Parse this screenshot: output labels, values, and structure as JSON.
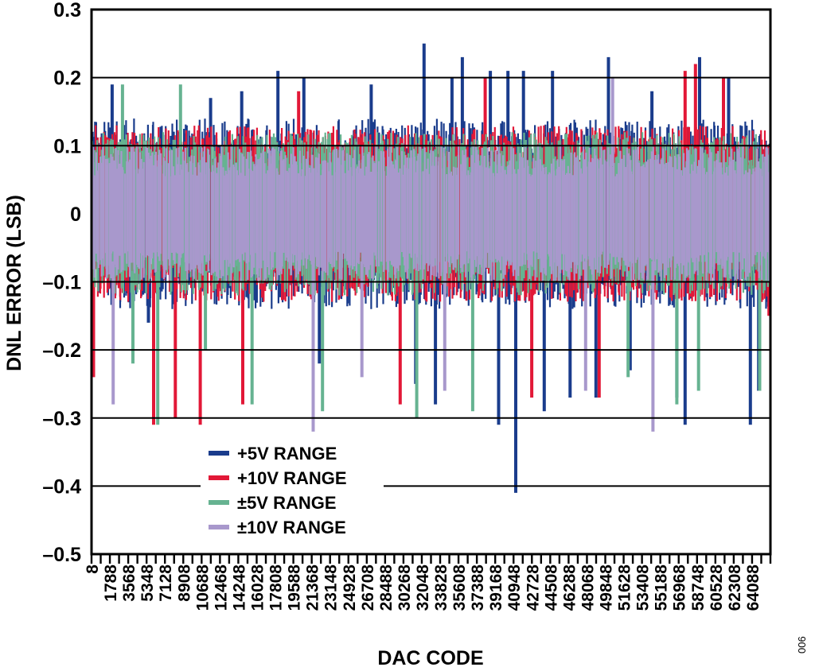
{
  "chart_data": {
    "type": "line",
    "xlabel": "DAC CODE",
    "ylabel": "DNL ERROR (LSB)",
    "figure_id": "006",
    "x_tick_labels": [
      "8",
      "1788",
      "3568",
      "5348",
      "7128",
      "8908",
      "10688",
      "12468",
      "14248",
      "16028",
      "17808",
      "19588",
      "21368",
      "23148",
      "24928",
      "26708",
      "28488",
      "30268",
      "32048",
      "33828",
      "35608",
      "37388",
      "39168",
      "40948",
      "42728",
      "44508",
      "46288",
      "48068",
      "49848",
      "51628",
      "53408",
      "55188",
      "56968",
      "58748",
      "60528",
      "62308",
      "64088"
    ],
    "y_tick_labels": [
      "0.3",
      "0.2",
      "0.1",
      "0",
      "–0.1",
      "–0.2",
      "–0.3",
      "–0.4",
      "–0.5"
    ],
    "xlim": [
      8,
      65535
    ],
    "ylim": [
      -0.5,
      0.3
    ],
    "y_ticks": [
      0.3,
      0.2,
      0.1,
      0,
      -0.1,
      -0.2,
      -0.3,
      -0.4,
      -0.5
    ],
    "grid": "horizontal",
    "legend_position": "bottom-left",
    "series": [
      {
        "name": "+5V RANGE",
        "color": "#1a3c8c",
        "band": [
          -0.14,
          0.14
        ],
        "spikes": [
          {
            "x": 2000,
            "y": 0.19
          },
          {
            "x": 5500,
            "y": -0.16
          },
          {
            "x": 11500,
            "y": 0.17
          },
          {
            "x": 14500,
            "y": 0.18
          },
          {
            "x": 18000,
            "y": 0.21
          },
          {
            "x": 20500,
            "y": 0.2
          },
          {
            "x": 22000,
            "y": -0.22
          },
          {
            "x": 27000,
            "y": 0.19
          },
          {
            "x": 31300,
            "y": -0.25
          },
          {
            "x": 32100,
            "y": 0.25
          },
          {
            "x": 33200,
            "y": -0.28
          },
          {
            "x": 34800,
            "y": 0.2
          },
          {
            "x": 35800,
            "y": 0.23
          },
          {
            "x": 38500,
            "y": 0.21
          },
          {
            "x": 39300,
            "y": -0.31
          },
          {
            "x": 40200,
            "y": 0.21
          },
          {
            "x": 40950,
            "y": -0.41
          },
          {
            "x": 41700,
            "y": 0.21
          },
          {
            "x": 43700,
            "y": -0.29
          },
          {
            "x": 44500,
            "y": 0.21
          },
          {
            "x": 46200,
            "y": -0.27
          },
          {
            "x": 48700,
            "y": -0.27
          },
          {
            "x": 49900,
            "y": 0.23
          },
          {
            "x": 52000,
            "y": -0.23
          },
          {
            "x": 54100,
            "y": 0.18
          },
          {
            "x": 56500,
            "y": -0.27
          },
          {
            "x": 57300,
            "y": -0.31
          },
          {
            "x": 58700,
            "y": 0.23
          },
          {
            "x": 61500,
            "y": 0.2
          },
          {
            "x": 63600,
            "y": -0.31
          },
          {
            "x": 64400,
            "y": -0.26
          }
        ]
      },
      {
        "name": "+10V RANGE",
        "color": "#e21837",
        "band": [
          -0.13,
          0.13
        ],
        "spikes": [
          {
            "x": 200,
            "y": -0.24
          },
          {
            "x": 6000,
            "y": -0.31
          },
          {
            "x": 8100,
            "y": -0.3
          },
          {
            "x": 10500,
            "y": -0.31
          },
          {
            "x": 14600,
            "y": -0.28
          },
          {
            "x": 20000,
            "y": 0.18
          },
          {
            "x": 29800,
            "y": -0.28
          },
          {
            "x": 38000,
            "y": 0.2
          },
          {
            "x": 42500,
            "y": -0.27
          },
          {
            "x": 49000,
            "y": -0.27
          },
          {
            "x": 57300,
            "y": 0.21
          },
          {
            "x": 58300,
            "y": 0.22
          },
          {
            "x": 61000,
            "y": 0.2
          },
          {
            "x": 65400,
            "y": -0.15
          }
        ]
      },
      {
        "name": "±5V RANGE",
        "color": "#66b391",
        "band": [
          -0.12,
          0.12
        ],
        "spikes": [
          {
            "x": 3000,
            "y": 0.19
          },
          {
            "x": 4000,
            "y": -0.22
          },
          {
            "x": 6400,
            "y": -0.31
          },
          {
            "x": 8600,
            "y": 0.19
          },
          {
            "x": 11000,
            "y": -0.2
          },
          {
            "x": 15500,
            "y": -0.28
          },
          {
            "x": 22300,
            "y": -0.29
          },
          {
            "x": 31400,
            "y": -0.3
          },
          {
            "x": 36800,
            "y": -0.29
          },
          {
            "x": 51800,
            "y": -0.24
          },
          {
            "x": 56500,
            "y": -0.28
          },
          {
            "x": 58600,
            "y": -0.26
          },
          {
            "x": 64500,
            "y": -0.26
          }
        ]
      },
      {
        "name": "±10V RANGE",
        "color": "#a898cc",
        "band": [
          -0.1,
          0.1
        ],
        "spikes": [
          {
            "x": 2100,
            "y": -0.28
          },
          {
            "x": 21400,
            "y": -0.32
          },
          {
            "x": 26100,
            "y": -0.24
          },
          {
            "x": 34100,
            "y": -0.26
          },
          {
            "x": 47700,
            "y": -0.26
          },
          {
            "x": 50300,
            "y": 0.2
          },
          {
            "x": 54200,
            "y": -0.32
          }
        ]
      }
    ]
  }
}
